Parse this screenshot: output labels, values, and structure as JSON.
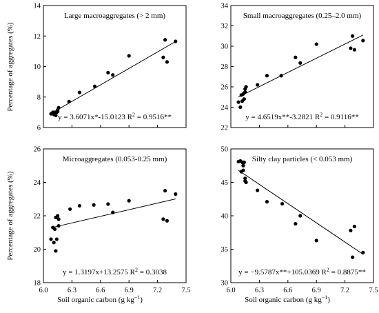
{
  "chart_data": [
    {
      "type": "scatter",
      "title": "Large macroaggregates (> 2 mm)",
      "equation": "y = 3.6071x*-15.0123  R",
      "r2": "2",
      "r2_value": " = 0.9516**",
      "xlabel": "",
      "ylabel": "Percentage of aggregates (%)",
      "xlim": [
        6.0,
        7.5
      ],
      "ylim": [
        6,
        14
      ],
      "xticks": [
        "6.0",
        "6.3",
        "6.6",
        "6.9",
        "7.2",
        "7.5"
      ],
      "yticks": [
        "6",
        "8",
        "10",
        "12",
        "14"
      ],
      "show_xticklabels": false,
      "fit": {
        "slope": 3.6071,
        "intercept": -15.0123
      },
      "points": [
        [
          6.08,
          6.9
        ],
        [
          6.1,
          7.0
        ],
        [
          6.11,
          6.85
        ],
        [
          6.12,
          6.9
        ],
        [
          6.12,
          7.0
        ],
        [
          6.13,
          6.8
        ],
        [
          6.14,
          7.0
        ],
        [
          6.15,
          7.05
        ],
        [
          6.15,
          7.15
        ],
        [
          6.16,
          7.3
        ],
        [
          6.27,
          7.7
        ],
        [
          6.38,
          8.3
        ],
        [
          6.54,
          8.7
        ],
        [
          6.68,
          9.6
        ],
        [
          6.73,
          9.45
        ],
        [
          6.9,
          10.7
        ],
        [
          7.26,
          10.6
        ],
        [
          7.28,
          11.75
        ],
        [
          7.3,
          10.3
        ],
        [
          7.39,
          11.65
        ]
      ]
    },
    {
      "type": "scatter",
      "title": "Small macroaggregates (0.25–2.0 mm)",
      "equation": "y = 4.6519x**-3.2821  R",
      "r2": "2",
      "r2_value": " = 0.9116**",
      "xlabel": "",
      "ylabel": "",
      "xlim": [
        6.0,
        7.5
      ],
      "ylim": [
        22,
        34
      ],
      "xticks": [
        "6.0",
        "6.3",
        "6.6",
        "6.9",
        "7.2",
        "7.5"
      ],
      "yticks": [
        "22",
        "24",
        "26",
        "28",
        "30",
        "32",
        "34"
      ],
      "show_xticklabels": false,
      "fit": {
        "slope": 4.6519,
        "intercept": -3.2821
      },
      "points": [
        [
          6.08,
          24.5
        ],
        [
          6.1,
          24.0
        ],
        [
          6.11,
          25.2
        ],
        [
          6.12,
          24.6
        ],
        [
          6.13,
          25.3
        ],
        [
          6.14,
          24.8
        ],
        [
          6.15,
          25.5
        ],
        [
          6.15,
          25.8
        ],
        [
          6.16,
          26.0
        ],
        [
          6.28,
          26.2
        ],
        [
          6.38,
          27.1
        ],
        [
          6.53,
          27.1
        ],
        [
          6.68,
          28.9
        ],
        [
          6.73,
          28.35
        ],
        [
          6.9,
          30.2
        ],
        [
          7.26,
          29.8
        ],
        [
          7.28,
          31.0
        ],
        [
          7.3,
          29.65
        ],
        [
          7.39,
          30.55
        ]
      ]
    },
    {
      "type": "scatter",
      "title": "Microaggregates (0.053-0.25 mm)",
      "equation": "y = 1.3197x+13.2575  R",
      "r2": "2",
      "r2_value": " = 0.3038",
      "xlabel": "",
      "ylabel": "Percentage of aggregates (%)",
      "xlim": [
        6.0,
        7.5
      ],
      "ylim": [
        18,
        26
      ],
      "xticks": [
        "6.0",
        "6.3",
        "6.6",
        "6.9",
        "7.2",
        "7.5"
      ],
      "yticks": [
        "18",
        "20",
        "22",
        "24",
        "26"
      ],
      "show_xticklabels": true,
      "fit": {
        "slope": 1.3197,
        "intercept": 13.2575
      },
      "points": [
        [
          6.08,
          20.6
        ],
        [
          6.1,
          21.3
        ],
        [
          6.11,
          20.4
        ],
        [
          6.12,
          21.2
        ],
        [
          6.13,
          19.9
        ],
        [
          6.13,
          21.9
        ],
        [
          6.14,
          20.6
        ],
        [
          6.15,
          22.0
        ],
        [
          6.16,
          21.8
        ],
        [
          6.16,
          21.4
        ],
        [
          6.28,
          22.4
        ],
        [
          6.38,
          22.6
        ],
        [
          6.53,
          22.65
        ],
        [
          6.68,
          22.7
        ],
        [
          6.73,
          22.2
        ],
        [
          6.9,
          22.9
        ],
        [
          7.26,
          21.8
        ],
        [
          7.28,
          23.5
        ],
        [
          7.3,
          21.7
        ],
        [
          7.39,
          23.3
        ]
      ]
    },
    {
      "type": "scatter",
      "title": "Silty clay particles (< 0.053 mm)",
      "equation": "y = −9.5787x**+105.0369  R",
      "r2": "2",
      "r2_value": " = 0.8875**",
      "xlabel": "",
      "ylabel": "",
      "xlim": [
        6.0,
        7.5
      ],
      "ylim": [
        30,
        50
      ],
      "xticks": [
        "6.0",
        "6.3",
        "6.6",
        "6.9",
        "7.2",
        "7.5"
      ],
      "yticks": [
        "30",
        "35",
        "40",
        "45",
        "50"
      ],
      "show_xticklabels": true,
      "fit": {
        "slope": -9.5787,
        "intercept": 105.0369
      },
      "points": [
        [
          6.08,
          48.1
        ],
        [
          6.1,
          48.2
        ],
        [
          6.11,
          46.6
        ],
        [
          6.12,
          48.0
        ],
        [
          6.13,
          46.8
        ],
        [
          6.13,
          47.5
        ],
        [
          6.14,
          48.0
        ],
        [
          6.15,
          45.6
        ],
        [
          6.15,
          45.2
        ],
        [
          6.16,
          45.0
        ],
        [
          6.28,
          43.8
        ],
        [
          6.38,
          42.1
        ],
        [
          6.54,
          41.8
        ],
        [
          6.68,
          38.8
        ],
        [
          6.73,
          40.0
        ],
        [
          6.9,
          36.3
        ],
        [
          7.26,
          37.8
        ],
        [
          7.28,
          33.8
        ],
        [
          7.3,
          38.4
        ],
        [
          7.39,
          34.5
        ]
      ]
    }
  ],
  "axis": {
    "xlabel_main": "Soil organic carbon (g kg",
    "xlabel_sup": "−1",
    "xlabel_end": ")"
  }
}
